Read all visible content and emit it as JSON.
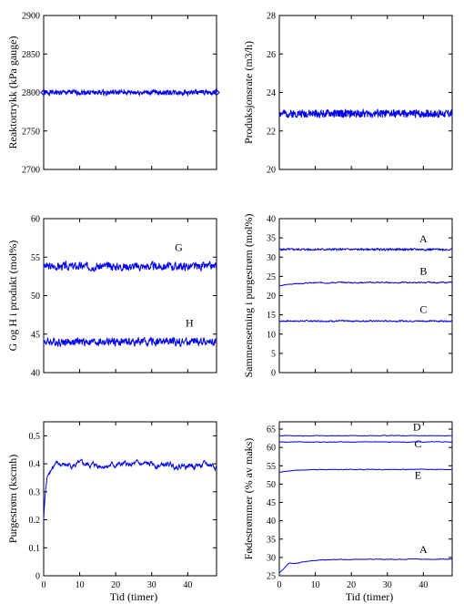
{
  "chart_data": [
    {
      "id": "reactor-pressure",
      "type": "line",
      "ylabel": "Reaktortrykk (kPa gauge)",
      "xlabel": "",
      "xlim": [
        0,
        48
      ],
      "ylim": [
        2700,
        2900
      ],
      "yticks": [
        2700,
        2750,
        2800,
        2850,
        2900
      ],
      "xticks": [],
      "series": [
        {
          "label": "",
          "base": 2800,
          "noise": 2.5,
          "seed": 1,
          "smooth": 0.2,
          "markers": [
            {
              "x": 0,
              "y": 2800
            },
            {
              "x": 48,
              "y": 2800
            }
          ]
        }
      ]
    },
    {
      "id": "production-rate",
      "type": "line",
      "ylabel": "Produksjonsrate (m3/h)",
      "xlabel": "",
      "xlim": [
        0,
        48
      ],
      "ylim": [
        20,
        28
      ],
      "yticks": [
        20,
        22,
        24,
        26,
        28
      ],
      "xticks": [],
      "series": [
        {
          "label": "",
          "base": 22.9,
          "noise": 0.13,
          "seed": 2,
          "smooth": 0.0
        }
      ]
    },
    {
      "id": "g-h-product",
      "type": "line",
      "ylabel": "G og H i produkt (mol%)",
      "xlabel": "",
      "xlim": [
        0,
        48
      ],
      "ylim": [
        40,
        60
      ],
      "yticks": [
        40,
        45,
        50,
        55,
        60
      ],
      "xticks": [],
      "series": [
        {
          "label": "G",
          "label_x": 37.5,
          "label_y": 55.8,
          "base": 53.8,
          "noise": 0.45,
          "seed": 3,
          "smooth": 0.35
        },
        {
          "label": "H",
          "label_x": 40.5,
          "label_y": 46.0,
          "base": 44.0,
          "noise": 0.45,
          "seed": 4,
          "smooth": 0.35
        }
      ]
    },
    {
      "id": "purge-composition",
      "type": "line",
      "ylabel": "Sammensetning i purgestrøm (mol%)",
      "xlabel": "",
      "xlim": [
        0,
        48
      ],
      "ylim": [
        0,
        40
      ],
      "yticks": [
        0,
        5,
        10,
        15,
        20,
        25,
        30,
        35,
        40
      ],
      "xticks": [],
      "series": [
        {
          "label": "A",
          "label_x": 40,
          "label_y": 33.8,
          "base": 32.0,
          "noise": 0.22,
          "seed": 5,
          "smooth": 0.4
        },
        {
          "label": "B",
          "label_x": 40,
          "label_y": 25.5,
          "base": 23.4,
          "noise": 0.12,
          "seed": 6,
          "smooth": 0.7,
          "start": 22.5
        },
        {
          "label": "C",
          "label_x": 40,
          "label_y": 15.5,
          "base": 13.4,
          "noise": 0.18,
          "seed": 7,
          "smooth": 0.5
        }
      ]
    },
    {
      "id": "purge-flow",
      "type": "line",
      "ylabel": "Purgestrøm (kscmh)",
      "xlabel": "Tid (timer)",
      "xlim": [
        0,
        48
      ],
      "ylim": [
        0,
        0.55
      ],
      "yticks": [
        0,
        0.1,
        0.2,
        0.3,
        0.4,
        0.5
      ],
      "ytick_labels": [
        "0",
        "0.1",
        "0.2",
        "0.3",
        "0.4",
        "0.5"
      ],
      "xticks": [
        0,
        10,
        20,
        30,
        40
      ],
      "series": [
        {
          "label": "",
          "base": 0.395,
          "noise": 0.012,
          "seed": 8,
          "smooth": 0.82,
          "start": 0.2,
          "rise": 0.7
        }
      ]
    },
    {
      "id": "feed-flows",
      "type": "line",
      "ylabel": "Fødestrømmer (% av maks)",
      "xlabel": "Tid (timer)",
      "xlim": [
        0,
        48
      ],
      "ylim": [
        25,
        67
      ],
      "yticks": [
        25,
        30,
        35,
        40,
        45,
        50,
        55,
        60,
        65
      ],
      "xticks": [
        0,
        10,
        20,
        30,
        40
      ],
      "series": [
        {
          "label": "D",
          "label_x": 38.2,
          "label_y": 64.6,
          "base": 63.2,
          "noise": 0.08,
          "seed": 9,
          "smooth": 0.8
        },
        {
          "label": "C",
          "label_x": 38.5,
          "label_y": 60.0,
          "base": 61.5,
          "noise": 0.08,
          "seed": 10,
          "smooth": 0.8
        },
        {
          "label": "E",
          "label_x": 38.5,
          "label_y": 51.5,
          "base": 54.0,
          "noise": 0.09,
          "seed": 11,
          "smooth": 0.8,
          "start": 53.2
        },
        {
          "label": "A",
          "label_x": 40,
          "label_y": 31.2,
          "base": 29.5,
          "noise": 0.12,
          "seed": 12,
          "smooth": 0.85,
          "start": 25.8,
          "overshoot": 31.0
        }
      ]
    }
  ]
}
